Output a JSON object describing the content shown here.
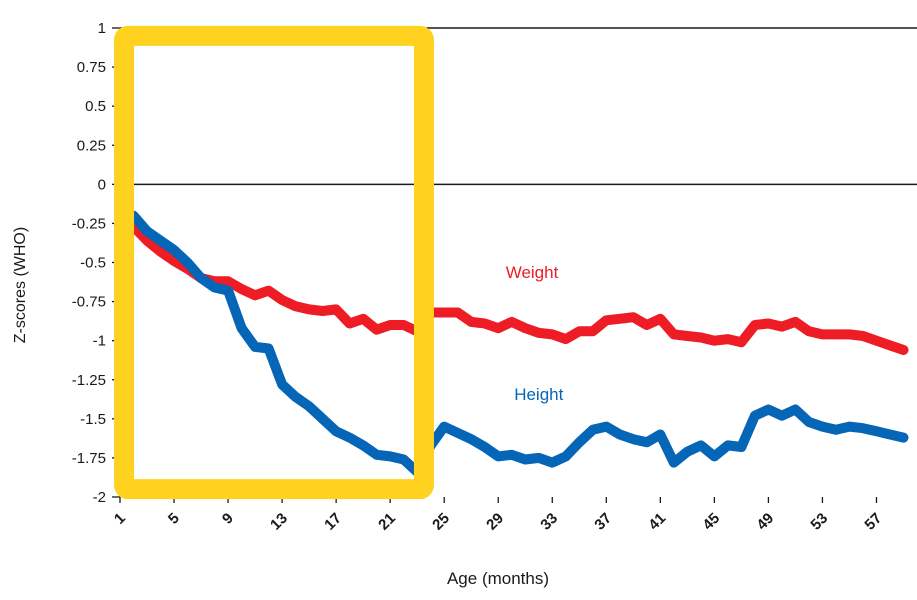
{
  "chart_data": {
    "type": "line",
    "title": "",
    "xlabel": "Age (months)",
    "ylabel": "Z-scores (WHO)",
    "xlim": [
      1,
      60
    ],
    "ylim": [
      -2,
      1
    ],
    "x_ticks": [
      1,
      5,
      9,
      13,
      17,
      21,
      25,
      29,
      33,
      37,
      41,
      45,
      49,
      53,
      57
    ],
    "y_ticks": [
      1,
      0.75,
      0.5,
      0.25,
      0,
      -0.25,
      -0.5,
      -0.75,
      -1,
      -1.25,
      -1.5,
      -1.75,
      -2
    ],
    "y_tick_labels": [
      "1",
      "0.75",
      "0.5",
      "0.25",
      "0",
      "-0.25",
      "-0.5",
      "-0.75",
      "-1",
      "-1.25",
      "-1.5",
      "-1.75",
      "-2"
    ],
    "grid": false,
    "reference_lines": [
      1,
      0
    ],
    "highlight_box": {
      "x_range": [
        1.3,
        23.5
      ],
      "y_range": [
        -1.95,
        0.95
      ],
      "color": "#FFD21F"
    },
    "series": [
      {
        "name": "Weight",
        "color": "#EE1C25",
        "label_position": {
          "x": 31.5,
          "y": -0.6
        },
        "points": [
          [
            2,
            -0.27
          ],
          [
            3,
            -0.36
          ],
          [
            4,
            -0.43
          ],
          [
            5,
            -0.49
          ],
          [
            6,
            -0.54
          ],
          [
            7,
            -0.6
          ],
          [
            8,
            -0.62
          ],
          [
            9,
            -0.62
          ],
          [
            10,
            -0.67
          ],
          [
            11,
            -0.71
          ],
          [
            12,
            -0.68
          ],
          [
            13,
            -0.74
          ],
          [
            14,
            -0.78
          ],
          [
            15,
            -0.8
          ],
          [
            16,
            -0.81
          ],
          [
            17,
            -0.8
          ],
          [
            18,
            -0.89
          ],
          [
            19,
            -0.86
          ],
          [
            20,
            -0.93
          ],
          [
            21,
            -0.9
          ],
          [
            22,
            -0.9
          ],
          [
            23,
            -0.94
          ],
          [
            24,
            -0.82
          ],
          [
            25,
            -0.82
          ],
          [
            26,
            -0.82
          ],
          [
            27,
            -0.88
          ],
          [
            28,
            -0.89
          ],
          [
            29,
            -0.92
          ],
          [
            30,
            -0.88
          ],
          [
            31,
            -0.92
          ],
          [
            32,
            -0.95
          ],
          [
            33,
            -0.96
          ],
          [
            34,
            -0.99
          ],
          [
            35,
            -0.94
          ],
          [
            36,
            -0.94
          ],
          [
            37,
            -0.87
          ],
          [
            38,
            -0.86
          ],
          [
            39,
            -0.85
          ],
          [
            40,
            -0.9
          ],
          [
            41,
            -0.86
          ],
          [
            42,
            -0.96
          ],
          [
            43,
            -0.97
          ],
          [
            44,
            -0.98
          ],
          [
            45,
            -1.0
          ],
          [
            46,
            -0.99
          ],
          [
            47,
            -1.01
          ],
          [
            48,
            -0.9
          ],
          [
            49,
            -0.89
          ],
          [
            50,
            -0.91
          ],
          [
            51,
            -0.88
          ],
          [
            52,
            -0.94
          ],
          [
            53,
            -0.96
          ],
          [
            54,
            -0.96
          ],
          [
            55,
            -0.96
          ],
          [
            56,
            -0.97
          ],
          [
            57,
            -1.0
          ],
          [
            58,
            -1.03
          ],
          [
            59,
            -1.06
          ]
        ]
      },
      {
        "name": "Height",
        "color": "#0565B6",
        "label_position": {
          "x": 32,
          "y": -1.38
        },
        "points": [
          [
            2,
            -0.2
          ],
          [
            3,
            -0.3
          ],
          [
            4,
            -0.36
          ],
          [
            5,
            -0.42
          ],
          [
            6,
            -0.5
          ],
          [
            7,
            -0.6
          ],
          [
            8,
            -0.66
          ],
          [
            9,
            -0.68
          ],
          [
            10,
            -0.92
          ],
          [
            11,
            -1.04
          ],
          [
            12,
            -1.05
          ],
          [
            13,
            -1.28
          ],
          [
            14,
            -1.36
          ],
          [
            15,
            -1.42
          ],
          [
            16,
            -1.5
          ],
          [
            17,
            -1.58
          ],
          [
            18,
            -1.62
          ],
          [
            19,
            -1.67
          ],
          [
            20,
            -1.73
          ],
          [
            21,
            -1.74
          ],
          [
            22,
            -1.76
          ],
          [
            23,
            -1.84
          ],
          [
            24,
            -1.67
          ],
          [
            25,
            -1.55
          ],
          [
            26,
            -1.59
          ],
          [
            27,
            -1.63
          ],
          [
            28,
            -1.68
          ],
          [
            29,
            -1.74
          ],
          [
            30,
            -1.73
          ],
          [
            31,
            -1.76
          ],
          [
            32,
            -1.75
          ],
          [
            33,
            -1.78
          ],
          [
            34,
            -1.74
          ],
          [
            35,
            -1.65
          ],
          [
            36,
            -1.57
          ],
          [
            37,
            -1.55
          ],
          [
            38,
            -1.6
          ],
          [
            39,
            -1.63
          ],
          [
            40,
            -1.65
          ],
          [
            41,
            -1.6
          ],
          [
            42,
            -1.78
          ],
          [
            43,
            -1.71
          ],
          [
            44,
            -1.67
          ],
          [
            45,
            -1.74
          ],
          [
            46,
            -1.67
          ],
          [
            47,
            -1.68
          ],
          [
            48,
            -1.48
          ],
          [
            49,
            -1.44
          ],
          [
            50,
            -1.48
          ],
          [
            51,
            -1.44
          ],
          [
            52,
            -1.52
          ],
          [
            53,
            -1.55
          ],
          [
            54,
            -1.57
          ],
          [
            55,
            -1.55
          ],
          [
            56,
            -1.56
          ],
          [
            57,
            -1.58
          ],
          [
            58,
            -1.6
          ],
          [
            59,
            -1.62
          ]
        ]
      }
    ]
  }
}
